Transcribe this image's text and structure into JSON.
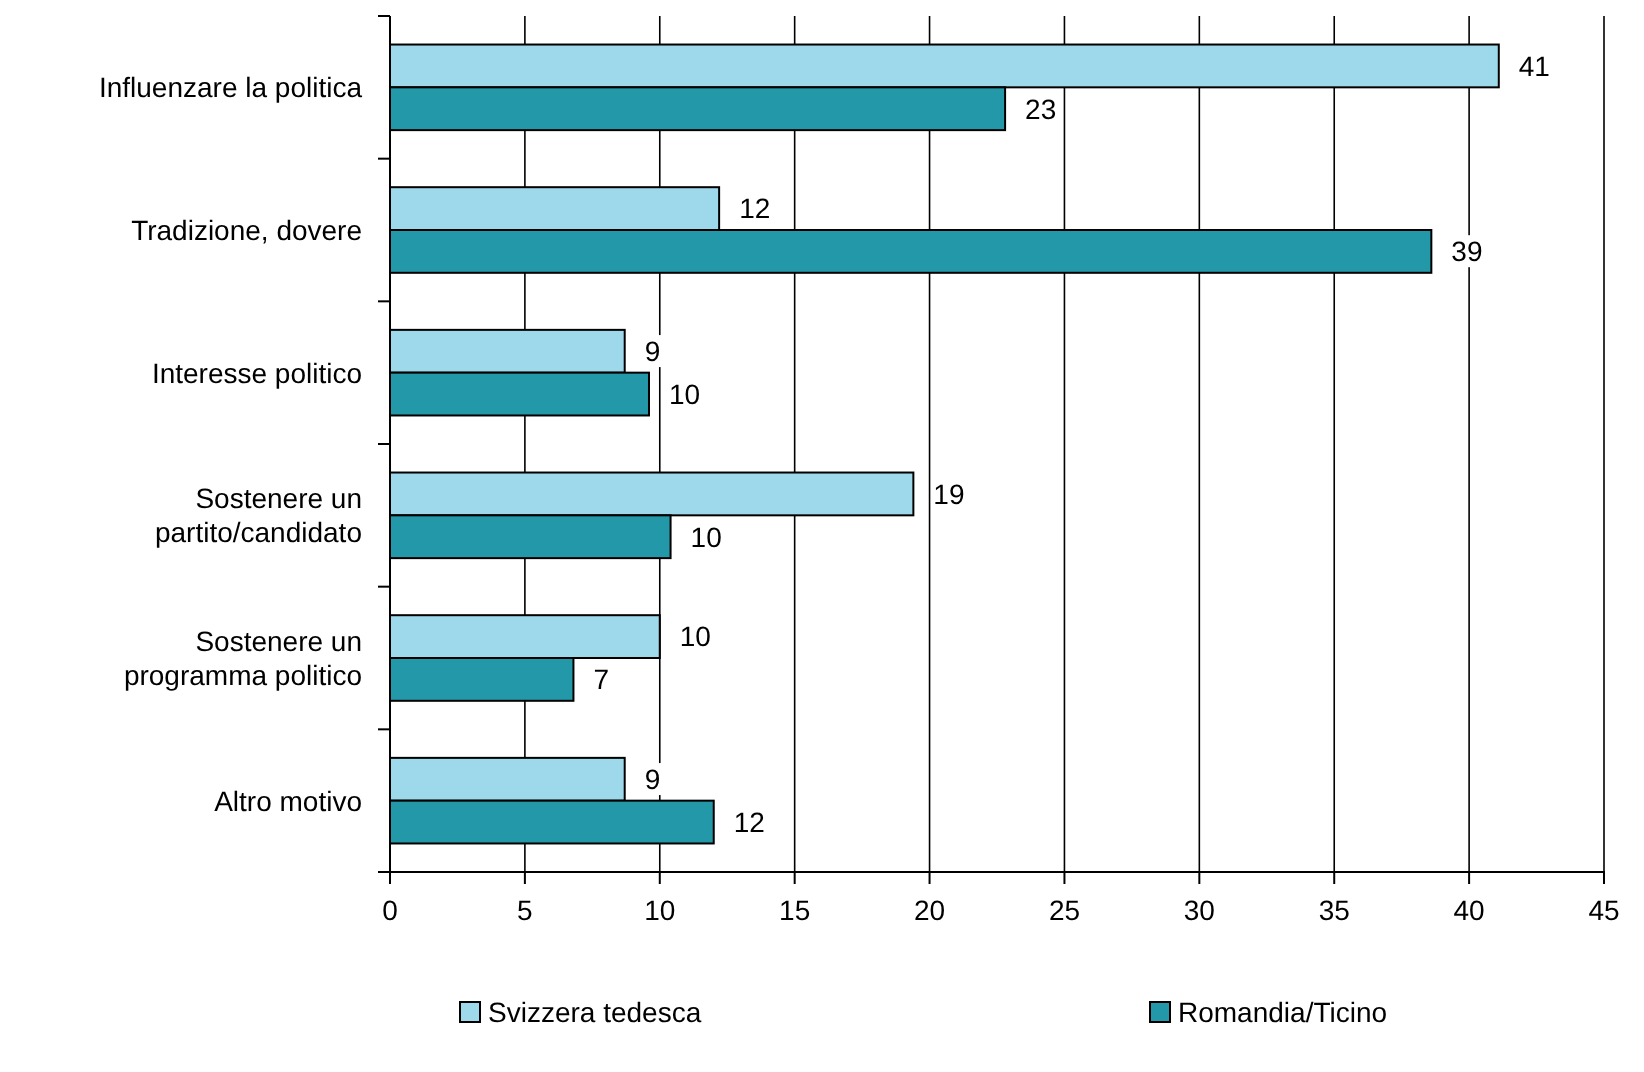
{
  "chart_data": {
    "type": "bar",
    "orientation": "horizontal",
    "categories": [
      "Influenzare la politica",
      "Tradizione, dovere",
      "Interesse politico",
      "Sostenere un partito/candidato",
      "Sostenere un programma politico",
      "Altro motivo"
    ],
    "series": [
      {
        "name": "Svizzera tedesca",
        "color": "#9dd9ea",
        "values": [
          41.1,
          12.2,
          8.7,
          19.4,
          10.0,
          8.7
        ],
        "value_labels": [
          "41",
          "12",
          "9",
          "19",
          "10",
          "9"
        ]
      },
      {
        "name": "Romandia/Ticino",
        "color": "#2398a9",
        "values": [
          22.8,
          38.6,
          9.6,
          10.4,
          6.8,
          12.0
        ],
        "value_labels": [
          "23",
          "39",
          "10",
          "10",
          "7",
          "12"
        ]
      }
    ],
    "xlim": [
      0,
      45
    ],
    "xticks": [
      0,
      5,
      10,
      15,
      20,
      25,
      30,
      35,
      40,
      45
    ],
    "grid": "x",
    "legend": "bottom"
  }
}
